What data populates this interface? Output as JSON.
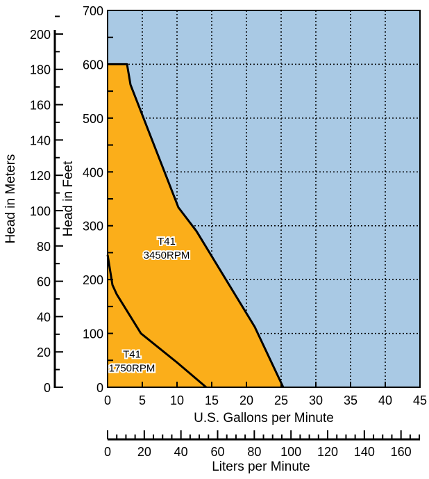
{
  "chart_data": {
    "type": "area",
    "title": "",
    "xlabel": "U.S. Gallons per Minute",
    "ylabel": "Head in Feet",
    "xlim": [
      0,
      45
    ],
    "ylim": [
      0,
      700
    ],
    "xticks": [
      0,
      5,
      10,
      15,
      20,
      25,
      30,
      35,
      40,
      45
    ],
    "yticks": [
      0,
      100,
      200,
      300,
      400,
      500,
      600,
      700
    ],
    "grid": true,
    "secondary_y": {
      "label": "Head in Meters",
      "ticks": [
        0,
        20,
        40,
        60,
        80,
        100,
        120,
        140,
        160,
        180,
        200
      ],
      "feet_per_unit": 3.28084
    },
    "secondary_x": {
      "label": "Liters per Minute",
      "ticks": [
        0,
        20,
        40,
        60,
        80,
        100,
        120,
        140,
        160
      ],
      "liters_per_gallon": 3.78541
    },
    "colors": {
      "background": "#a9c9e4",
      "fill": "#fbae1a",
      "line": "#000000"
    },
    "series": [
      {
        "name": "T41 3450RPM",
        "label_lines": [
          "T41",
          "3450RPM"
        ],
        "label_at": [
          8.5,
          265
        ],
        "x": [
          0,
          2.8,
          3.3,
          10.2,
          12.8,
          21.2,
          25.3
        ],
        "y": [
          600,
          600,
          562,
          334,
          290,
          112,
          0
        ]
      },
      {
        "name": "T41 1750RPM",
        "label_lines": [
          "T41",
          "1750RPM"
        ],
        "label_at": [
          3.5,
          55
        ],
        "x": [
          0,
          0.7,
          1.3,
          4.8,
          10,
          14.2
        ],
        "y": [
          246,
          190,
          173,
          100,
          46,
          0
        ]
      }
    ]
  }
}
